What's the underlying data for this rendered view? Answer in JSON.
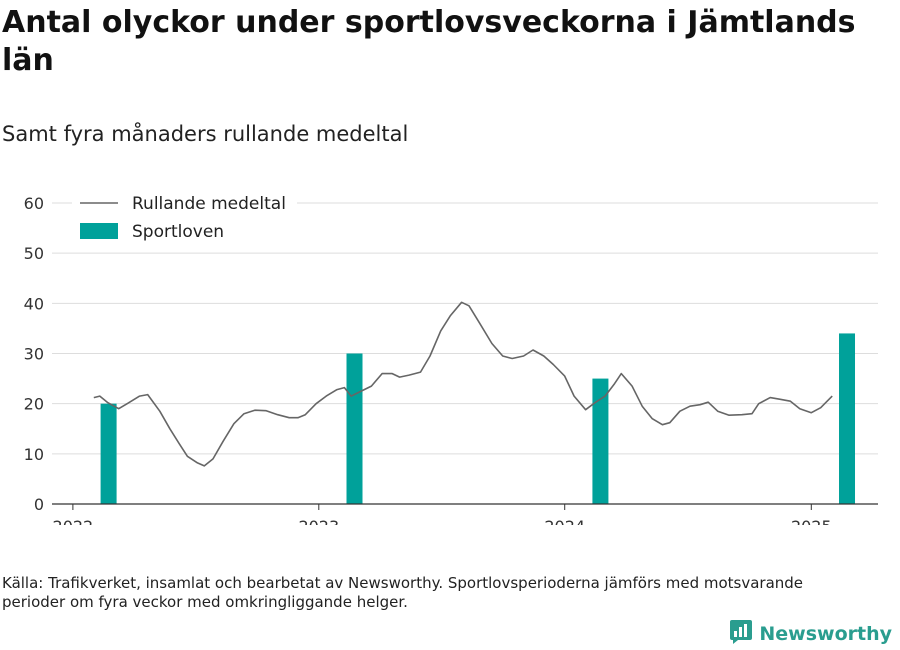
{
  "title": "Antal olyckor under sportlovsveckorna i Jämtlands län",
  "subtitle": "Samt fyra månaders rullande medeltal",
  "source": "Källa: Trafikverket, insamlat och bearbetat av Newsworthy. Sportlovsperioderna jämförs med motsvarande perioder om fyra veckor med omkringliggande helger.",
  "brand": {
    "name": "Newsworthy",
    "logo_icon": "bar-chart-logo-icon"
  },
  "colors": {
    "line": "#666666",
    "bar": "#00a19a",
    "grid": "#dddddd",
    "brand": "#2a9d8f"
  },
  "chart_data": {
    "type": "bar+line",
    "ylim": [
      0,
      60
    ],
    "yticks": [
      0,
      10,
      20,
      30,
      40,
      50,
      60
    ],
    "xticks": [
      "2022",
      "2023",
      "2024",
      "2025"
    ],
    "xlim": [
      "2021-12-01",
      "2025-04-10"
    ],
    "legend_position": "top-left",
    "series": [
      {
        "name": "Rullande medeltal",
        "type": "line",
        "points": [
          [
            "2022-02-01",
            21.2
          ],
          [
            "2022-02-10",
            21.5
          ],
          [
            "2022-02-22",
            20.2
          ],
          [
            "2022-03-10",
            19.0
          ],
          [
            "2022-03-25",
            20.2
          ],
          [
            "2022-04-10",
            21.5
          ],
          [
            "2022-04-22",
            21.8
          ],
          [
            "2022-05-10",
            18.5
          ],
          [
            "2022-05-25",
            15.0
          ],
          [
            "2022-06-08",
            12.0
          ],
          [
            "2022-06-20",
            9.5
          ],
          [
            "2022-07-05",
            8.2
          ],
          [
            "2022-07-15",
            7.6
          ],
          [
            "2022-07-28",
            9.0
          ],
          [
            "2022-08-12",
            12.5
          ],
          [
            "2022-08-28",
            16.0
          ],
          [
            "2022-09-12",
            18.0
          ],
          [
            "2022-09-28",
            18.7
          ],
          [
            "2022-10-15",
            18.6
          ],
          [
            "2022-11-01",
            17.8
          ],
          [
            "2022-11-18",
            17.2
          ],
          [
            "2022-12-01",
            17.2
          ],
          [
            "2022-12-12",
            17.8
          ],
          [
            "2022-12-28",
            20.0
          ],
          [
            "2023-01-12",
            21.5
          ],
          [
            "2023-01-28",
            22.8
          ],
          [
            "2023-02-08",
            23.2
          ],
          [
            "2023-02-18",
            21.5
          ],
          [
            "2023-03-05",
            22.5
          ],
          [
            "2023-03-20",
            23.5
          ],
          [
            "2023-04-05",
            26.0
          ],
          [
            "2023-04-20",
            26.0
          ],
          [
            "2023-05-01",
            25.3
          ],
          [
            "2023-05-15",
            25.7
          ],
          [
            "2023-06-01",
            26.3
          ],
          [
            "2023-06-15",
            29.5
          ],
          [
            "2023-07-01",
            34.5
          ],
          [
            "2023-07-15",
            37.5
          ],
          [
            "2023-08-01",
            40.2
          ],
          [
            "2023-08-12",
            39.5
          ],
          [
            "2023-08-28",
            36.0
          ],
          [
            "2023-09-15",
            32.0
          ],
          [
            "2023-10-01",
            29.5
          ],
          [
            "2023-10-15",
            29.0
          ],
          [
            "2023-11-01",
            29.5
          ],
          [
            "2023-11-15",
            30.7
          ],
          [
            "2023-12-01",
            29.5
          ],
          [
            "2023-12-15",
            27.8
          ],
          [
            "2024-01-01",
            25.5
          ],
          [
            "2024-01-15",
            21.5
          ],
          [
            "2024-02-01",
            18.8
          ],
          [
            "2024-02-15",
            20.2
          ],
          [
            "2024-03-01",
            21.5
          ],
          [
            "2024-03-15",
            24.0
          ],
          [
            "2024-03-25",
            26.0
          ],
          [
            "2024-04-10",
            23.5
          ],
          [
            "2024-04-25",
            19.5
          ],
          [
            "2024-05-10",
            17.0
          ],
          [
            "2024-05-25",
            15.8
          ],
          [
            "2024-06-05",
            16.2
          ],
          [
            "2024-06-20",
            18.5
          ],
          [
            "2024-07-05",
            19.5
          ],
          [
            "2024-07-20",
            19.8
          ],
          [
            "2024-08-01",
            20.3
          ],
          [
            "2024-08-15",
            18.5
          ],
          [
            "2024-09-01",
            17.7
          ],
          [
            "2024-09-20",
            17.8
          ],
          [
            "2024-10-05",
            18.0
          ],
          [
            "2024-10-15",
            20.0
          ],
          [
            "2024-11-01",
            21.2
          ],
          [
            "2024-11-15",
            20.9
          ],
          [
            "2024-12-01",
            20.5
          ],
          [
            "2024-12-15",
            19.0
          ],
          [
            "2025-01-01",
            18.2
          ],
          [
            "2025-01-15",
            19.2
          ],
          [
            "2025-02-01",
            21.5
          ]
        ]
      },
      {
        "name": "Sportloven",
        "type": "bar",
        "points": [
          [
            "2022-02-23",
            20
          ],
          [
            "2023-02-23",
            30
          ],
          [
            "2024-02-23",
            25
          ],
          [
            "2025-02-23",
            34
          ]
        ]
      }
    ]
  }
}
